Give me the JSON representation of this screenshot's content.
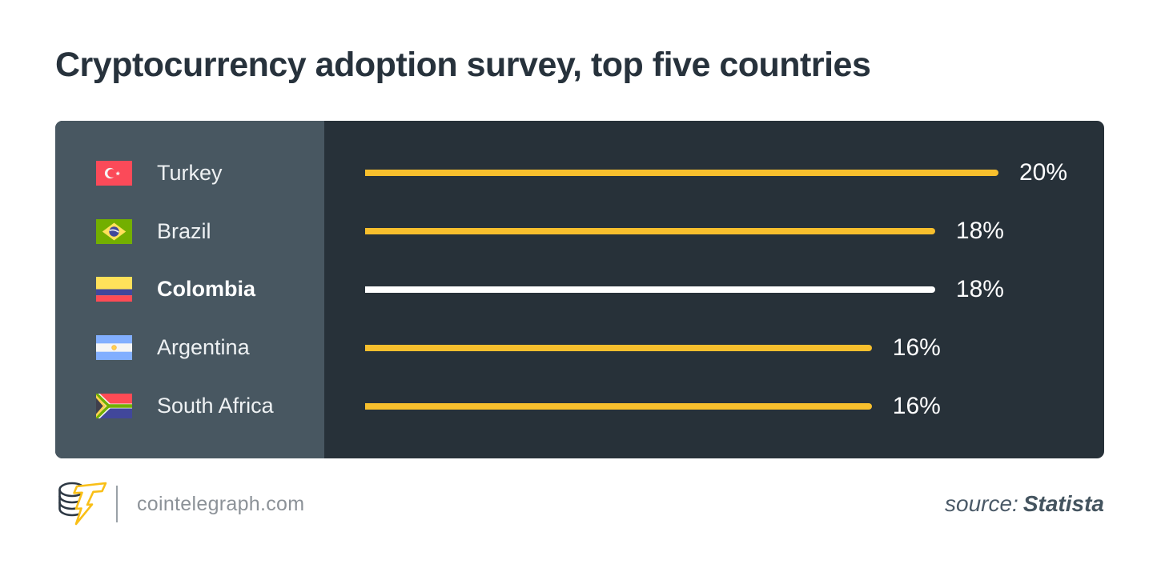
{
  "title": "Cryptocurrency adoption survey, top five countries",
  "chart_data": {
    "type": "bar",
    "orientation": "horizontal",
    "title": "Cryptocurrency adoption survey, top five countries",
    "unit": "%",
    "xlim": [
      0,
      20
    ],
    "grid": false,
    "legend": false,
    "categories": [
      "Turkey",
      "Brazil",
      "Colombia",
      "Argentina",
      "South Africa"
    ],
    "values": [
      20,
      18,
      18,
      16,
      16
    ],
    "rows": [
      {
        "country": "Turkey",
        "flag": "turkey-flag",
        "value": 20,
        "value_label": "20%",
        "highlighted": false
      },
      {
        "country": "Brazil",
        "flag": "brazil-flag",
        "value": 18,
        "value_label": "18%",
        "highlighted": false
      },
      {
        "country": "Colombia",
        "flag": "colombia-flag",
        "value": 18,
        "value_label": "18%",
        "highlighted": true
      },
      {
        "country": "Argentina",
        "flag": "argentina-flag",
        "value": 16,
        "value_label": "16%",
        "highlighted": false
      },
      {
        "country": "South Africa",
        "flag": "south-africa-flag",
        "value": 16,
        "value_label": "16%",
        "highlighted": false
      }
    ],
    "bar_color": "#F7BF2D",
    "highlight_bar_color": "#FFFFFF"
  },
  "footer": {
    "site": "cointelegraph.com",
    "source_prefix": "source:",
    "source_name": "Statista"
  },
  "colors": {
    "background": "#FFFFFF",
    "panel_dark": "#273139",
    "panel_light": "#485761",
    "accent_yellow": "#F7BF2D",
    "title_text": "#27323C",
    "label_text": "#EEF1F3",
    "footer_text": "#8C9298",
    "source_text": "#4B5A68"
  }
}
